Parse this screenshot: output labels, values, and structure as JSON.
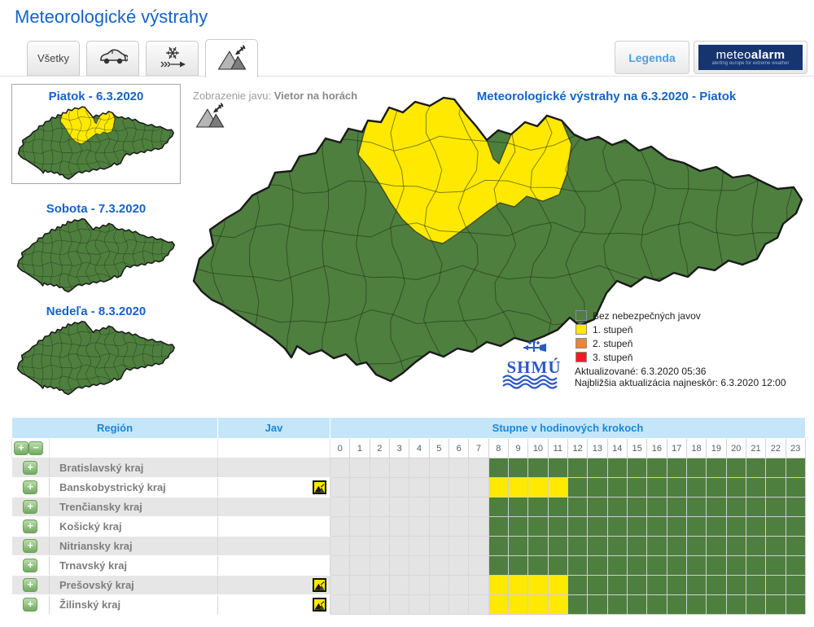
{
  "page": {
    "title": "Meteorologické výstrahy"
  },
  "tabs": [
    {
      "label": "Všetky",
      "icon": null,
      "active": false
    },
    {
      "label": "",
      "icon": "car-wind-icon",
      "active": false
    },
    {
      "label": "",
      "icon": "snowdrift-icon",
      "active": false
    },
    {
      "label": "",
      "icon": "mountain-wind-icon",
      "active": true
    }
  ],
  "legend_button": {
    "label": "Legenda"
  },
  "meteoalarm": {
    "brand_light": "meteo",
    "brand_bold": "alarm",
    "tagline": "alerting europe for extreme weather"
  },
  "day_maps": [
    {
      "label": "Piatok - 6.3.2020",
      "selected": true,
      "has_warning": true
    },
    {
      "label": "Sobota - 7.3.2020",
      "selected": false,
      "has_warning": false
    },
    {
      "label": "Nedeľa - 8.3.2020",
      "selected": false,
      "has_warning": false
    }
  ],
  "main_map": {
    "phenomenon_label": "Zobrazenie javu:",
    "phenomenon_value": "Vietor na horách",
    "title": "Meteorologické výstrahy na 6.3.2020 - Piatok",
    "legend": [
      {
        "label": "Bez nebezpečných javov",
        "color": "#4e7f3f"
      },
      {
        "label": "1. stupeň",
        "color": "#ffe900"
      },
      {
        "label": "2. stupeň",
        "color": "#ef8432"
      },
      {
        "label": "3. stupeň",
        "color": "#ed1c24"
      }
    ],
    "logo_text": "SHMÚ",
    "updated": "Aktualizované: 6.3.2020 05:36",
    "next_update": "Najbližšia aktualizácia najneskôr: 6.3.2020 12:00"
  },
  "table": {
    "headers": {
      "region": "Región",
      "jav": "Jav",
      "steps": "Stupne v hodinových krokoch"
    },
    "hours": [
      "0",
      "1",
      "2",
      "3",
      "4",
      "5",
      "6",
      "7",
      "8",
      "9",
      "10",
      "11",
      "12",
      "13",
      "14",
      "15",
      "16",
      "17",
      "18",
      "19",
      "20",
      "21",
      "22",
      "23"
    ],
    "cell_legend": {
      "-": "no data",
      "g": "bez nebezpečných javov",
      "y": "1. stupeň"
    },
    "rows": [
      {
        "region": "Bratislavský kraj",
        "jav_icon": false,
        "cells": "--------gggggggggggggggg"
      },
      {
        "region": "Banskobystrický kraj",
        "jav_icon": true,
        "cells": "--------yyyygggggggggggg"
      },
      {
        "region": "Trenčiansky kraj",
        "jav_icon": false,
        "cells": "--------gggggggggggggggg"
      },
      {
        "region": "Košický kraj",
        "jav_icon": false,
        "cells": "--------gggggggggggggggg"
      },
      {
        "region": "Nitriansky kraj",
        "jav_icon": false,
        "cells": "--------gggggggggggggggg"
      },
      {
        "region": "Trnavský kraj",
        "jav_icon": false,
        "cells": "--------gggggggggggggggg"
      },
      {
        "region": "Prešovský kraj",
        "jav_icon": true,
        "cells": "--------yyyygggggggggggg"
      },
      {
        "region": "Žilinský kraj",
        "jav_icon": true,
        "cells": "--------yyyygggggggggggg"
      }
    ]
  },
  "colors": {
    "accent_blue": "#1563c8",
    "table_header_bg": "#c5e6f9",
    "table_header_text": "#1b87d9",
    "ok_green": "#4e7f3f",
    "warn_yellow": "#ffe900",
    "warn_orange": "#ef8432",
    "warn_red": "#ed1c24",
    "empty_cell": "#e4e4e4",
    "meteoalarm_navy": "#16356f",
    "shmu_blue": "#2d58c8"
  }
}
